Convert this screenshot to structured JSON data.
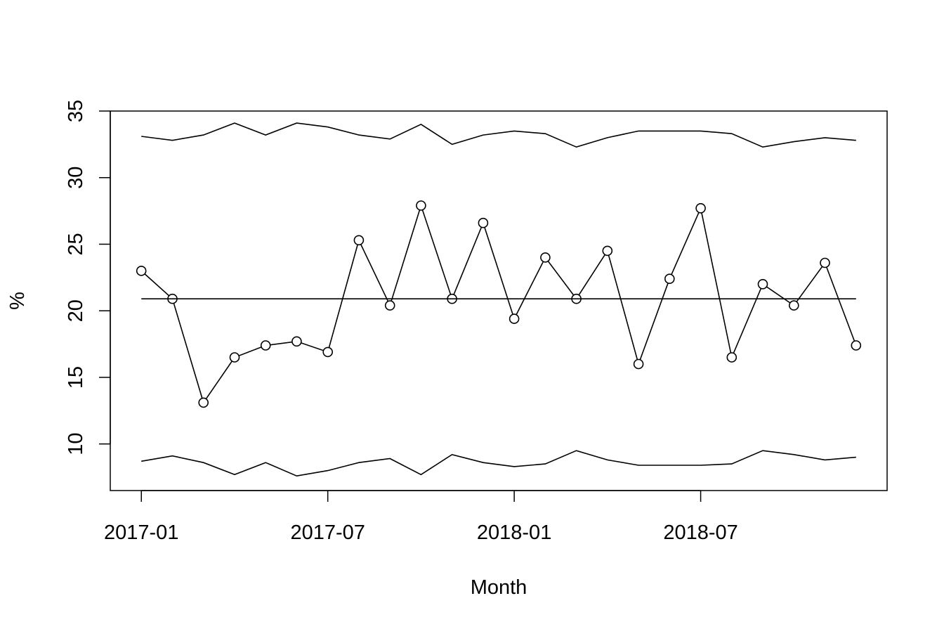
{
  "chart_data": {
    "type": "line",
    "title": "",
    "xlabel": "Month",
    "ylabel": "%",
    "x": [
      "2017-01",
      "2017-02",
      "2017-03",
      "2017-04",
      "2017-05",
      "2017-06",
      "2017-07",
      "2017-08",
      "2017-09",
      "2017-10",
      "2017-11",
      "2017-12",
      "2018-01",
      "2018-02",
      "2018-03",
      "2018-04",
      "2018-05",
      "2018-06",
      "2018-07",
      "2018-08",
      "2018-09",
      "2018-10",
      "2018-11",
      "2018-12"
    ],
    "xticks": [
      "2017-01",
      "2017-07",
      "2018-01",
      "2018-07"
    ],
    "yticks": [
      10,
      15,
      20,
      25,
      30,
      35
    ],
    "ylim": [
      6.5,
      35
    ],
    "xlim": [
      "2016-12-01",
      "2019-01-01"
    ],
    "grid": false,
    "series": [
      {
        "values": [
          23.0,
          20.9,
          13.1,
          16.5,
          17.4,
          17.7,
          16.9,
          25.3,
          20.4,
          27.9,
          20.9,
          26.6,
          19.4,
          24.0,
          20.9,
          24.5,
          16.0,
          22.4,
          27.7,
          16.5,
          22.0,
          20.4,
          23.6,
          17.4
        ],
        "markers": true
      },
      {
        "values": [
          20.9,
          20.9,
          20.9,
          20.9,
          20.9,
          20.9,
          20.9,
          20.9,
          20.9,
          20.9,
          20.9,
          20.9,
          20.9,
          20.9,
          20.9,
          20.9,
          20.9,
          20.9,
          20.9,
          20.9,
          20.9,
          20.9,
          20.9,
          20.9
        ],
        "markers": false
      },
      {
        "values": [
          33.1,
          32.8,
          33.2,
          34.1,
          33.2,
          34.1,
          33.8,
          33.2,
          32.9,
          34.0,
          32.5,
          33.2,
          33.5,
          33.3,
          32.3,
          33.0,
          33.5,
          33.5,
          33.5,
          33.3,
          32.3,
          32.7,
          33.0,
          32.8
        ],
        "markers": false
      },
      {
        "values": [
          8.7,
          9.1,
          8.6,
          7.7,
          8.6,
          7.6,
          8.0,
          8.6,
          8.9,
          7.7,
          9.2,
          8.6,
          8.3,
          8.5,
          9.5,
          8.8,
          8.4,
          8.4,
          8.4,
          8.5,
          9.5,
          9.2,
          8.8,
          9.0
        ],
        "markers": false
      }
    ]
  }
}
